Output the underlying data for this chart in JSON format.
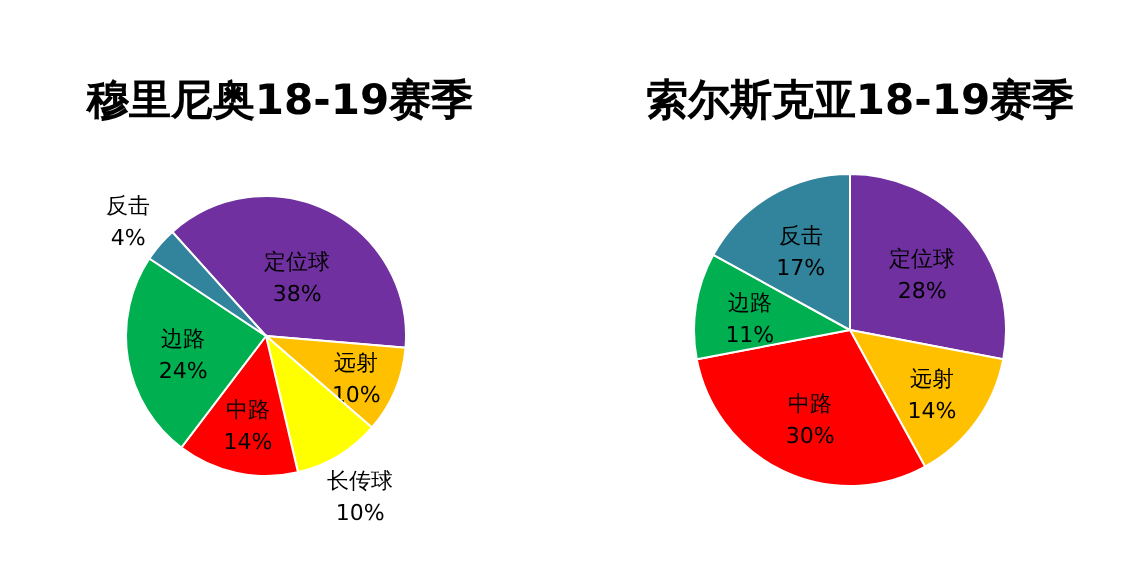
{
  "chart_data": [
    {
      "type": "pie",
      "title": "穆里尼奥18-19赛季",
      "categories": [
        "定位球",
        "远射",
        "长传球",
        "中路",
        "边路",
        "反击"
      ],
      "values": [
        38,
        10,
        10,
        14,
        24,
        4
      ],
      "colors": [
        "#7030a0",
        "#ffc000",
        "#ffff00",
        "#ff0000",
        "#00b050",
        "#31849b"
      ],
      "value_labels": [
        "38%",
        "10%",
        "10%",
        "14%",
        "24%",
        "4%"
      ]
    },
    {
      "type": "pie",
      "title": "索尔斯克亚18-19赛季",
      "categories": [
        "定位球",
        "远射",
        "中路",
        "边路",
        "反击"
      ],
      "values": [
        28,
        14,
        30,
        11,
        17
      ],
      "colors": [
        "#7030a0",
        "#ffc000",
        "#ff0000",
        "#00b050",
        "#31849b"
      ],
      "value_labels": [
        "28%",
        "14%",
        "30%",
        "11%",
        "17%"
      ]
    }
  ]
}
